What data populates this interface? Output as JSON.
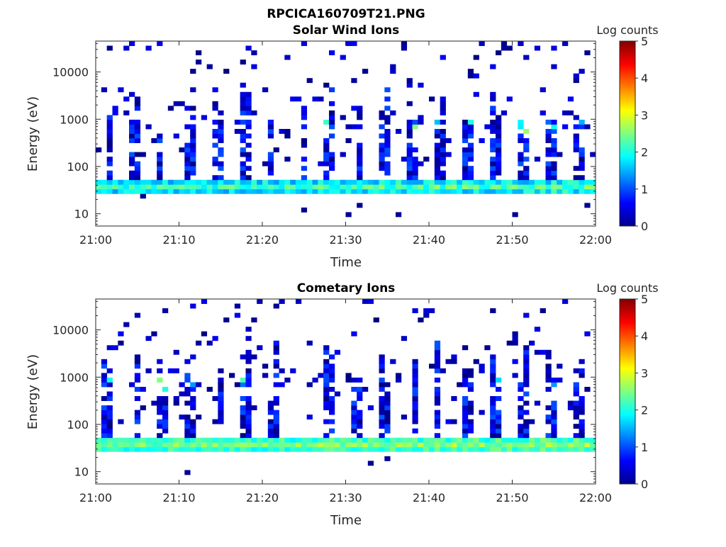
{
  "figure": {
    "filename": "RPCICA160709T21.PNG"
  },
  "colorbar": {
    "label": "Log counts",
    "ticks": [
      "0",
      "1",
      "2",
      "3",
      "4",
      "5"
    ]
  },
  "chart_data": [
    {
      "type": "heatmap",
      "title": "Solar Wind Ions",
      "xlabel": "Time",
      "ylabel": "Energy (eV)",
      "x_ticks": [
        "21:00",
        "21:10",
        "21:20",
        "21:30",
        "21:40",
        "21:50",
        "22:00"
      ],
      "xlim": [
        "21:00",
        "22:00"
      ],
      "y_ticks": [
        10,
        100,
        1000,
        10000
      ],
      "y_tick_labels": [
        "10",
        "100",
        "1000",
        "10000"
      ],
      "ylim": [
        5.5,
        45000
      ],
      "y_scale": "log",
      "color_scale": "jet",
      "clim": [
        0,
        5
      ],
      "features": [
        {
          "description": "persistent band",
          "energy_range_eV": [
            25,
            55
          ],
          "log_counts_range": [
            1,
            2.8
          ]
        },
        {
          "description": "periodic vertical spikes",
          "energy_range_eV": [
            60,
            1500
          ],
          "log_counts_range": [
            0,
            1.5
          ]
        },
        {
          "description": "high-energy peaks",
          "energy_range_eV": [
            600,
            900
          ],
          "log_counts_max": 2.8
        }
      ]
    },
    {
      "type": "heatmap",
      "title": "Cometary Ions",
      "xlabel": "Time",
      "ylabel": "Energy (eV)",
      "x_ticks": [
        "21:00",
        "21:10",
        "21:20",
        "21:30",
        "21:40",
        "21:50",
        "22:00"
      ],
      "xlim": [
        "21:00",
        "22:00"
      ],
      "y_ticks": [
        10,
        100,
        1000,
        10000
      ],
      "y_tick_labels": [
        "10",
        "100",
        "1000",
        "10000"
      ],
      "ylim": [
        5.5,
        45000
      ],
      "y_scale": "log",
      "color_scale": "jet",
      "clim": [
        0,
        5
      ],
      "features": [
        {
          "description": "persistent band",
          "energy_range_eV": [
            25,
            55
          ],
          "log_counts_range": [
            1.5,
            3
          ]
        },
        {
          "description": "periodic vertical spikes",
          "energy_range_eV": [
            60,
            800
          ],
          "log_counts_range": [
            0,
            1.5
          ]
        },
        {
          "description": "high-energy peaks",
          "energy_range_eV": [
            600,
            900
          ],
          "log_counts_max": 2.8
        }
      ]
    }
  ]
}
